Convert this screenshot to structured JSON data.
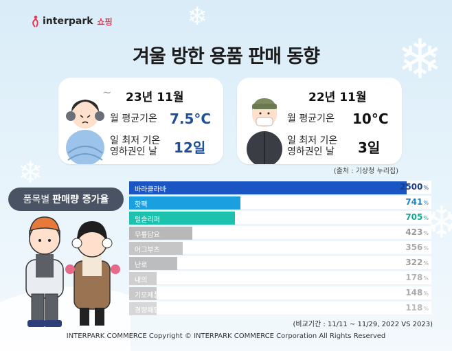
{
  "brand": {
    "name": "interpark",
    "shop": "쇼핑",
    "accent": "#e8344e"
  },
  "title": "겨울 방한 용품 판매 동향",
  "cards": [
    {
      "period": "23년 11월",
      "avg_label": "월 평균기온",
      "avg_value": "7.5°C",
      "low_label_1": "일 최저 기온",
      "low_label_2": "영하권인 날",
      "low_value": "12일",
      "value_color": "#1d4f9c"
    },
    {
      "period": "22년 11월",
      "avg_label": "월 평균기온",
      "avg_value": "10°C",
      "low_label_1": "일 최저 기온",
      "low_label_2": "영하권인 날",
      "low_value": "3일",
      "value_color": "#111111"
    }
  ],
  "source": "(출처 : 기상청 누리집)",
  "pill": {
    "prefix": "품목별",
    "bold": "판매량 증가율"
  },
  "chart_data": {
    "type": "bar",
    "orientation": "horizontal",
    "unit": "%",
    "categories": [
      "바라클라바",
      "핫팩",
      "털슬리퍼",
      "무릎담요",
      "어그부츠",
      "난로",
      "내의",
      "기모제품",
      "경량패딩"
    ],
    "values": [
      2500,
      741,
      705,
      423,
      356,
      322,
      178,
      148,
      118
    ],
    "value_labels": [
      "2500",
      "741",
      "705",
      "423",
      "356",
      "322",
      "178",
      "148",
      "118"
    ],
    "colors": [
      "#1b55c4",
      "#1a9fe0",
      "#1cc2ad",
      "#b8b8b8",
      "#c6c6c6",
      "#bdbdbd",
      "#cfcfcf",
      "#c9c9c9",
      "#d7d7d7"
    ],
    "value_colors": [
      "#1b3f8a",
      "#1a86c8",
      "#14a893",
      "#9a9a9a",
      "#a8a8a8",
      "#9e9e9e",
      "#b2b2b2",
      "#aaaaaa",
      "#b9b9b9"
    ],
    "title": "",
    "xlabel": "",
    "ylabel": ""
  },
  "compare_note": "(비교기간 : 11/11 ~ 11/29, 2022  VS  2023)",
  "copyright": "INTERPARK COMMERCE Copyright © INTERPARK COMMERCE Corporation All Rights Reserved"
}
